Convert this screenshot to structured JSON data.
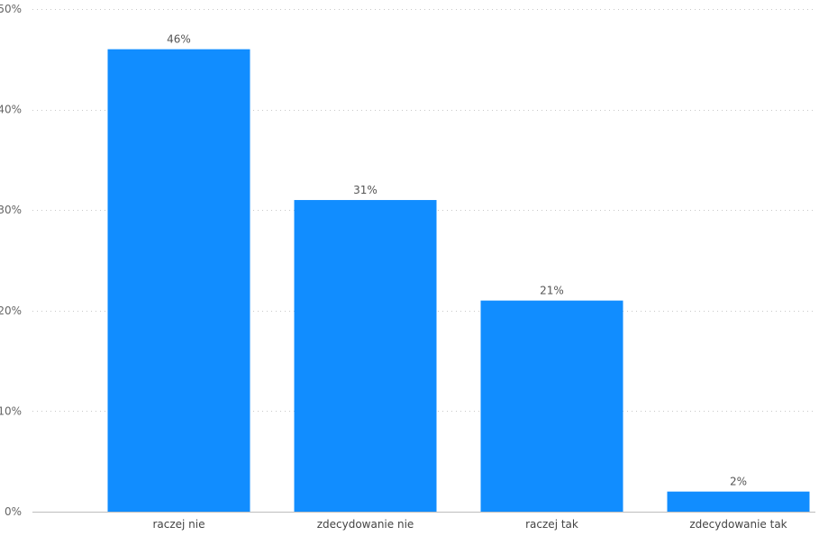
{
  "chart_data": {
    "type": "bar",
    "title": "",
    "xlabel": "",
    "ylabel": "",
    "categories": [
      "raczej nie",
      "zdecydowanie nie",
      "raczej tak",
      "zdecydowanie tak"
    ],
    "values": [
      46,
      31,
      21,
      2
    ],
    "data_labels": [
      "46%",
      "31%",
      "21%",
      "2%"
    ],
    "ylim": [
      0,
      50
    ],
    "yticks": [
      0,
      10,
      20,
      30,
      40,
      50
    ],
    "ytick_labels": [
      "0%",
      "10%",
      "20%",
      "30%",
      "40%",
      "50%"
    ],
    "grid": true,
    "legend": "none",
    "colors": {
      "bar": "#118DFF",
      "grid": "#c8c8c8"
    }
  }
}
